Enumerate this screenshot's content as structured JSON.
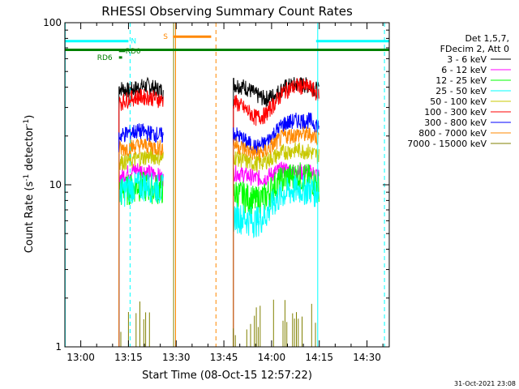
{
  "chart_data": {
    "type": "line",
    "title": "RHESSI Observing Summary Count Rates",
    "xlabel": "Start Time (08-Oct-15 12:57:22)",
    "ylabel_main": "Count Rate (s",
    "ylabel_sup1": "-1",
    "ylabel_mid": " detector",
    "ylabel_sup2": "-1",
    "ylabel_end": ")",
    "yscale": "log",
    "ylim": [
      1,
      100
    ],
    "xlim_minutes": [
      -5,
      97
    ],
    "x_ticks": [
      {
        "label": "13:00",
        "minute": 0
      },
      {
        "label": "13:15",
        "minute": 15
      },
      {
        "label": "13:30",
        "minute": 30
      },
      {
        "label": "13:45",
        "minute": 45
      },
      {
        "label": "14:00",
        "minute": 60
      },
      {
        "label": "14:15",
        "minute": 75
      },
      {
        "label": "14:30",
        "minute": 90
      }
    ],
    "y_ticks": [
      {
        "label": "1",
        "value": 1
      },
      {
        "label": "10",
        "value": 10
      },
      {
        "label": "100",
        "value": 100
      }
    ],
    "legend_header": [
      "Det 1,5,7,",
      "FDecim 2, Att 0"
    ],
    "legend_position": "right",
    "series": [
      {
        "name": "3 - 6 keV",
        "color": "#000000",
        "segments": [
          [
            [
              12,
              40
            ],
            [
              15,
              38
            ],
            [
              18,
              40
            ],
            [
              21,
              41
            ],
            [
              24,
              39
            ],
            [
              26,
              38
            ]
          ],
          [
            [
              48,
              42
            ],
            [
              52,
              40
            ],
            [
              55,
              36
            ],
            [
              58,
              34
            ],
            [
              61,
              36
            ],
            [
              64,
              40
            ],
            [
              68,
              42
            ],
            [
              72,
              41
            ],
            [
              75,
              38
            ]
          ]
        ]
      },
      {
        "name": "6 - 12 keV",
        "color": "#ff00ff",
        "segments": [
          [
            [
              12,
              11
            ],
            [
              15,
              12
            ],
            [
              18,
              12.5
            ],
            [
              21,
              12
            ],
            [
              24,
              11.5
            ],
            [
              26,
              11
            ]
          ],
          [
            [
              48,
              12
            ],
            [
              52,
              11.5
            ],
            [
              55,
              11
            ],
            [
              58,
              11
            ],
            [
              61,
              12
            ],
            [
              64,
              12.5
            ],
            [
              68,
              12
            ],
            [
              72,
              12
            ],
            [
              75,
              11.5
            ]
          ]
        ]
      },
      {
        "name": "12 - 25 keV",
        "color": "#00ff00",
        "segments": [
          [
            [
              12,
              9
            ],
            [
              15,
              9.5
            ],
            [
              18,
              10
            ],
            [
              21,
              9.8
            ],
            [
              24,
              9.6
            ],
            [
              26,
              9.5
            ]
          ],
          [
            [
              48,
              9
            ],
            [
              52,
              8.5
            ],
            [
              55,
              8
            ],
            [
              58,
              8.5
            ],
            [
              61,
              10
            ],
            [
              64,
              11
            ],
            [
              68,
              11.5
            ],
            [
              72,
              11
            ],
            [
              75,
              10
            ]
          ]
        ]
      },
      {
        "name": "25 - 50 keV",
        "color": "#00ffff",
        "segments": [
          [
            [
              12,
              9
            ],
            [
              15,
              9.5
            ],
            [
              18,
              10
            ],
            [
              21,
              10
            ],
            [
              24,
              9.6
            ],
            [
              26,
              9.5
            ]
          ],
          [
            [
              48,
              6.5
            ],
            [
              52,
              6.2
            ],
            [
              55,
              6
            ],
            [
              58,
              6.5
            ],
            [
              61,
              8
            ],
            [
              64,
              9
            ],
            [
              68,
              9.5
            ],
            [
              72,
              9.5
            ],
            [
              75,
              9
            ]
          ]
        ]
      },
      {
        "name": "50 - 100 keV",
        "color": "#c8c800",
        "segments": [
          [
            [
              12,
              14
            ],
            [
              15,
              14
            ],
            [
              18,
              14.5
            ],
            [
              21,
              15
            ],
            [
              24,
              15
            ],
            [
              26,
              14.5
            ]
          ],
          [
            [
              48,
              15
            ],
            [
              52,
              14
            ],
            [
              55,
              13.5
            ],
            [
              58,
              14
            ],
            [
              61,
              15
            ],
            [
              64,
              16
            ],
            [
              68,
              16.5
            ],
            [
              72,
              16
            ],
            [
              75,
              15
            ]
          ]
        ]
      },
      {
        "name": "100 - 300 keV",
        "color": "#ff0000",
        "segments": [
          [
            [
              12,
              32
            ],
            [
              15,
              34
            ],
            [
              18,
              35
            ],
            [
              21,
              35
            ],
            [
              24,
              34
            ],
            [
              26,
              33
            ]
          ],
          [
            [
              48,
              33
            ],
            [
              52,
              29
            ],
            [
              55,
              26
            ],
            [
              58,
              27
            ],
            [
              61,
              32
            ],
            [
              64,
              38
            ],
            [
              68,
              41
            ],
            [
              72,
              40
            ],
            [
              75,
              36
            ]
          ]
        ]
      },
      {
        "name": "300 - 800 keV",
        "color": "#0000ff",
        "segments": [
          [
            [
              12,
              20
            ],
            [
              15,
              21
            ],
            [
              18,
              21.5
            ],
            [
              21,
              21
            ],
            [
              24,
              20.5
            ],
            [
              26,
              20
            ]
          ],
          [
            [
              48,
              21
            ],
            [
              52,
              18.5
            ],
            [
              55,
              17
            ],
            [
              58,
              18
            ],
            [
              61,
              21
            ],
            [
              64,
              24
            ],
            [
              68,
              25
            ],
            [
              72,
              25
            ],
            [
              75,
              23
            ]
          ]
        ]
      },
      {
        "name": "800 - 7000 keV",
        "color": "#ff8800",
        "segments": [
          [
            [
              12,
              16.5
            ],
            [
              15,
              17
            ],
            [
              18,
              17.5
            ],
            [
              21,
              17.5
            ],
            [
              24,
              17
            ],
            [
              26,
              17
            ]
          ],
          [
            [
              48,
              18
            ],
            [
              52,
              16.5
            ],
            [
              55,
              15.5
            ],
            [
              58,
              16
            ],
            [
              61,
              18
            ],
            [
              64,
              20
            ],
            [
              68,
              20.5
            ],
            [
              72,
              20.5
            ],
            [
              75,
              19.5
            ]
          ]
        ]
      },
      {
        "name": "7000 - 15000 keV",
        "color": "#808000",
        "segments": [
          [
            [
              12,
              1.2
            ],
            [
              15,
              1.35
            ],
            [
              18,
              1.3
            ],
            [
              21,
              1.4
            ],
            [
              24,
              1.25
            ],
            [
              26,
              1.2
            ]
          ],
          [
            [
              48,
              1.15
            ],
            [
              52,
              1.2
            ],
            [
              55,
              1.3
            ],
            [
              58,
              1.25
            ],
            [
              61,
              1.4
            ],
            [
              64,
              1.35
            ],
            [
              68,
              1.3
            ],
            [
              72,
              1.3
            ],
            [
              75,
              1.2
            ]
          ]
        ]
      }
    ],
    "state_bars": [
      {
        "label": "N",
        "color": "#00ffff",
        "y": 77,
        "x_ranges": [
          [
            -5,
            15
          ],
          [
            74,
            97
          ]
        ]
      },
      {
        "label": "S",
        "color": "#ff8800",
        "y": 82,
        "x_ranges": [
          [
            29,
            41
          ]
        ]
      },
      {
        "label": "RD0",
        "color": "#008000",
        "y": 67,
        "x_ranges": [
          [
            12,
            14
          ]
        ]
      },
      {
        "label": "RD6",
        "color": "#008000",
        "y": 61,
        "x_ranges": [
          [
            12,
            13
          ]
        ]
      },
      {
        "label": "",
        "color": "#008000",
        "y": 68,
        "x_ranges": [
          [
            -5,
            97
          ]
        ]
      }
    ],
    "vlines": [
      {
        "minute": -4.9,
        "color": "#00ffff",
        "style": "solid"
      },
      {
        "minute": 15.5,
        "color": "#00ffff",
        "style": "dashed"
      },
      {
        "minute": 29.8,
        "color": "#ff8800",
        "style": "solid"
      },
      {
        "minute": 29.2,
        "color": "#808000",
        "style": "solid"
      },
      {
        "minute": 42.5,
        "color": "#ff8800",
        "style": "dashed"
      },
      {
        "minute": 74.5,
        "color": "#00ffff",
        "style": "solid"
      },
      {
        "minute": 95.5,
        "color": "#00ffff",
        "style": "dashed"
      }
    ],
    "timestamp": "31-Oct-2021 23:08"
  }
}
